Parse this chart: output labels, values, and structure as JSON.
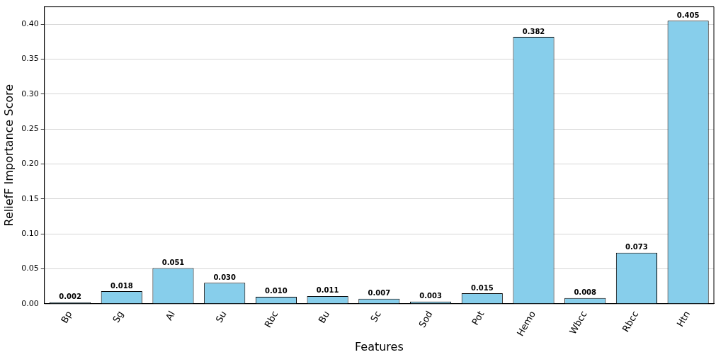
{
  "chart_data": {
    "type": "bar",
    "xlabel": "Features",
    "ylabel": "ReliefF Importance Score",
    "categories": [
      "Bp",
      "Sg",
      "Al",
      "Su",
      "Rbc",
      "Bu",
      "Sc",
      "Sod",
      "Pot",
      "Hemo",
      "Wbcc",
      "Rbcc",
      "Htn"
    ],
    "values": [
      0.002,
      0.018,
      0.051,
      0.03,
      0.01,
      0.011,
      0.007,
      0.003,
      0.015,
      0.382,
      0.008,
      0.073,
      0.405
    ],
    "color": "#87ceeb",
    "ylim": [
      0,
      0.425
    ],
    "yticks": [
      {
        "value": 0,
        "label": "0.00"
      },
      {
        "value": 0.05,
        "label": "0.05"
      },
      {
        "value": 0.1,
        "label": "0.10"
      },
      {
        "value": 0.15,
        "label": "0.15"
      },
      {
        "value": 0.2,
        "label": "0.20"
      },
      {
        "value": 0.25,
        "label": "0.25"
      },
      {
        "value": 0.3,
        "label": "0.30"
      },
      {
        "value": 0.35,
        "label": "0.35"
      },
      {
        "value": 0.4,
        "label": "0.40"
      }
    ],
    "value_labels": [
      "0.002",
      "0.018",
      "0.051",
      "0.030",
      "0.010",
      "0.011",
      "0.007",
      "0.003",
      "0.015",
      "0.382",
      "0.008",
      "0.073",
      "0.405"
    ],
    "grid": "y",
    "legend": false
  }
}
